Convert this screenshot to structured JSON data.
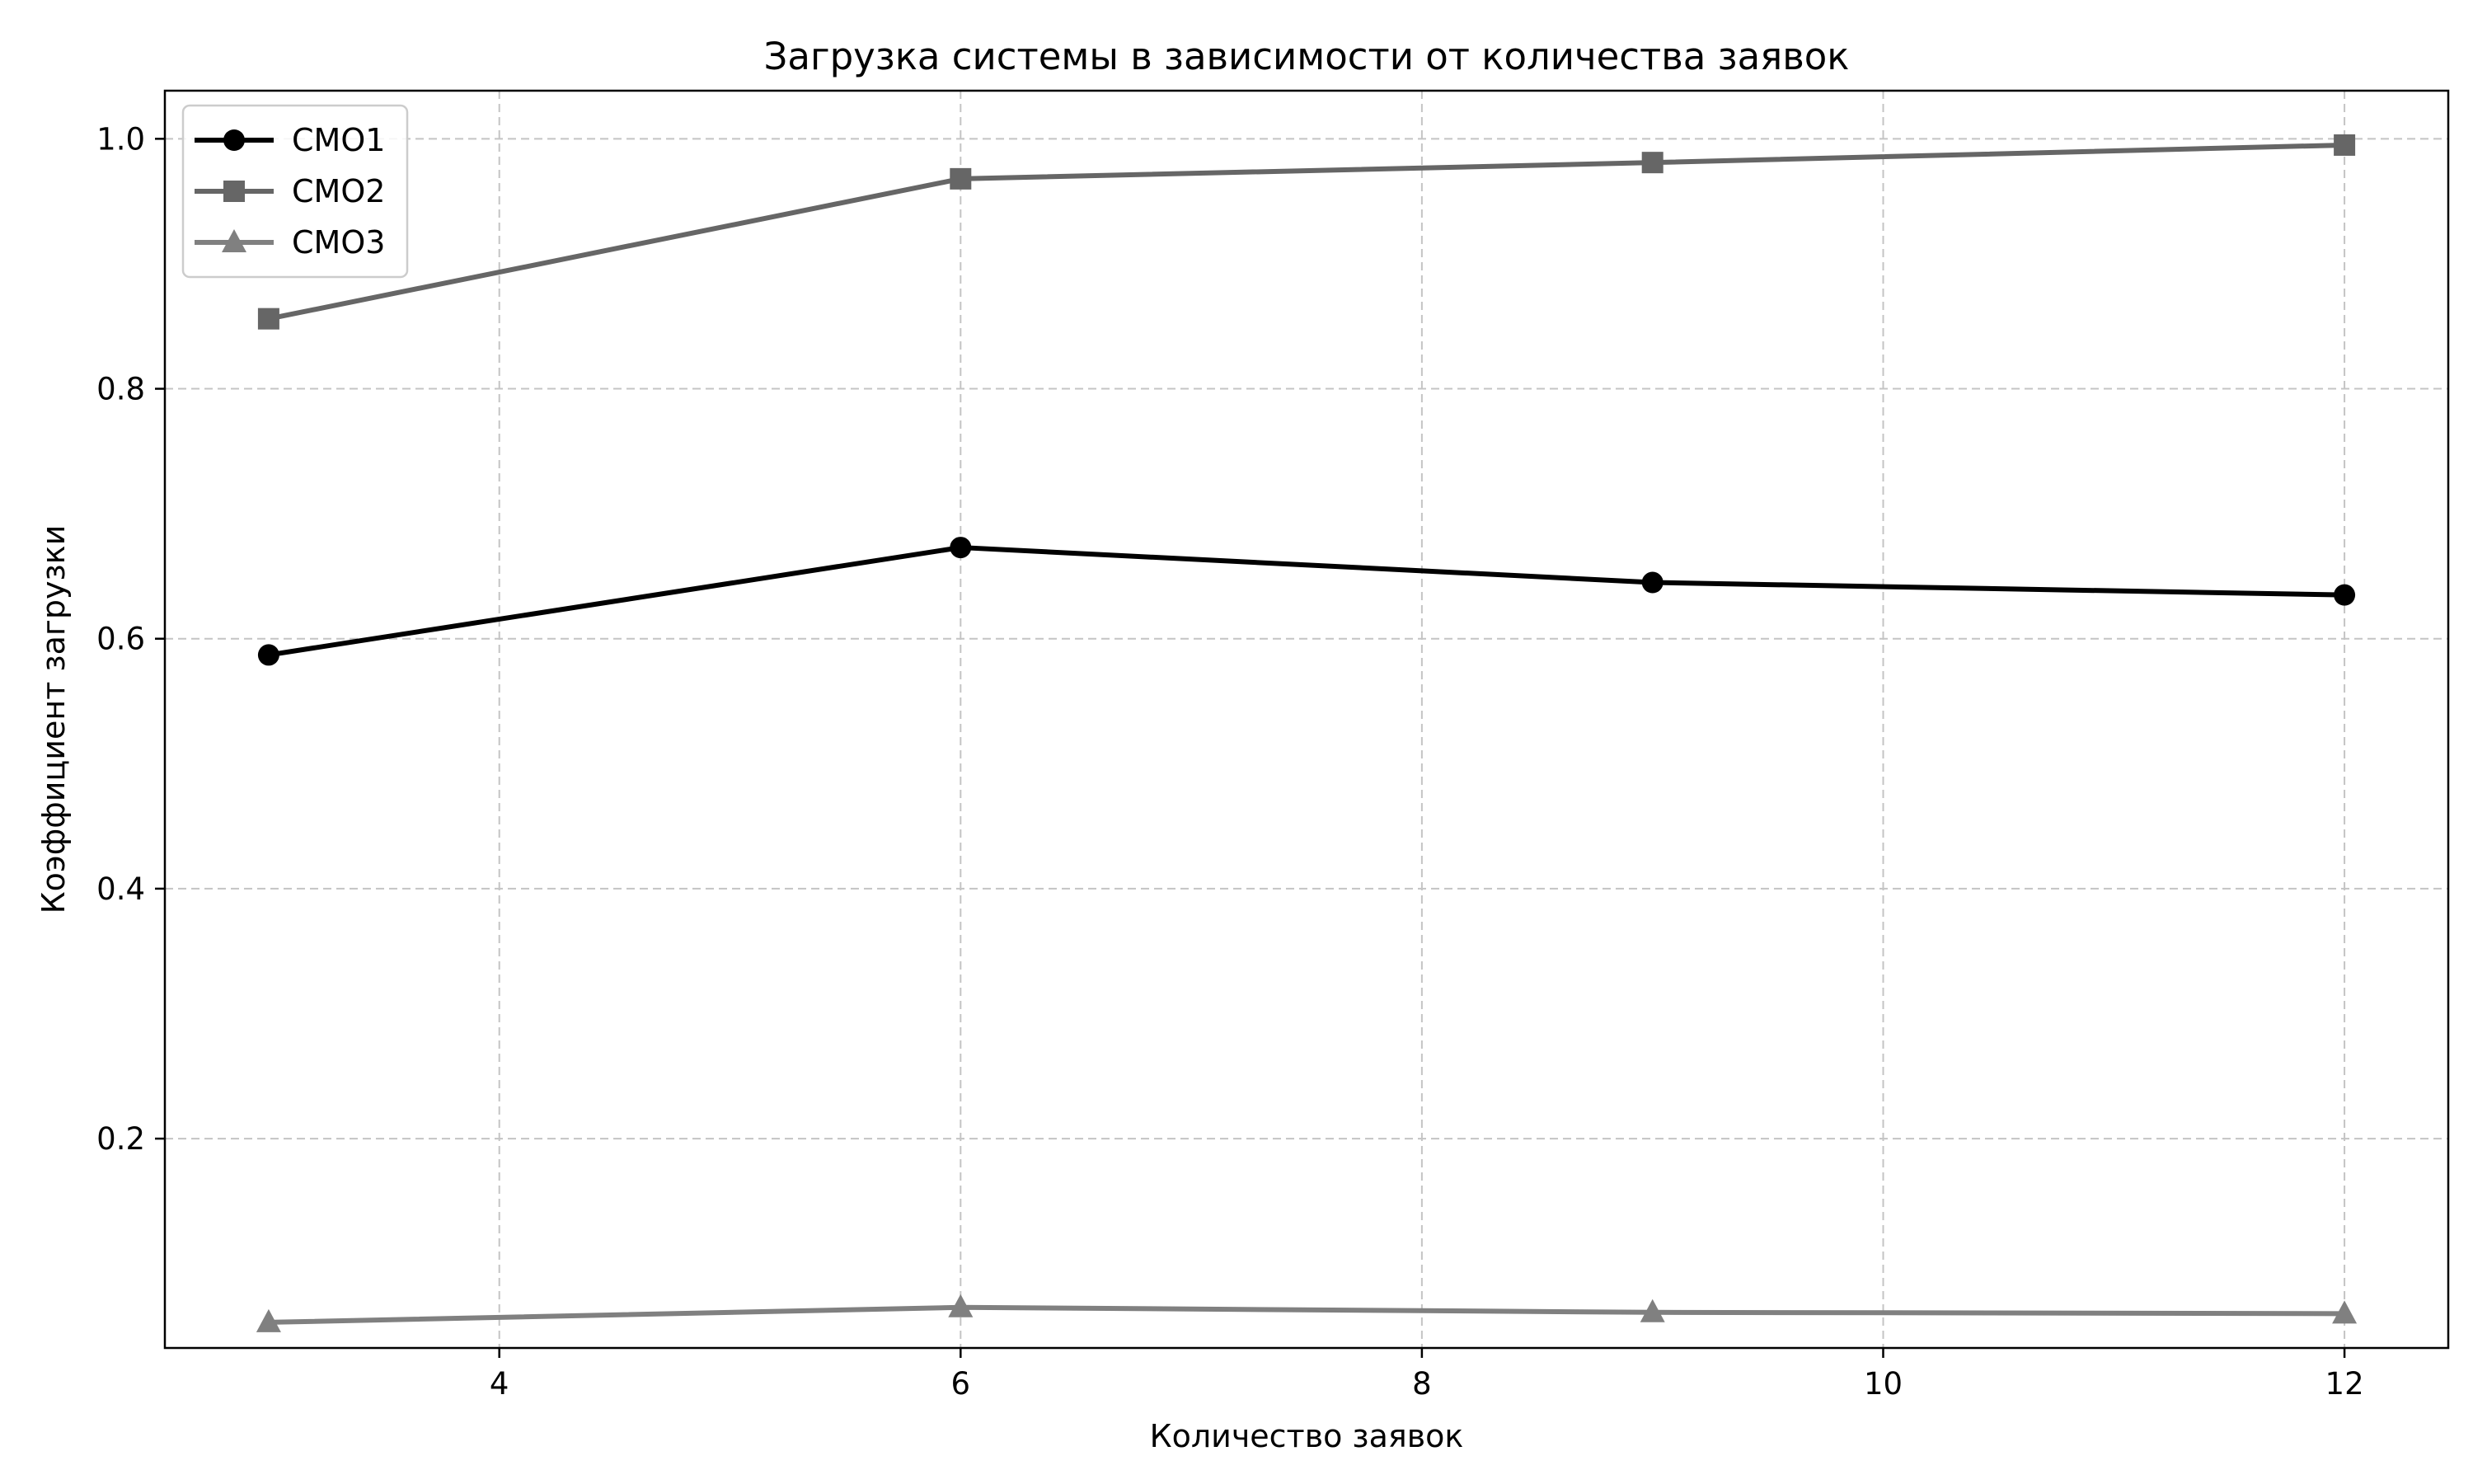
{
  "chart_data": {
    "type": "line",
    "title": "Загрузка системы в зависимости от количества заявок",
    "xlabel": "Количество заявок",
    "ylabel": "Коэффициент загрузки",
    "xlim": [
      2.55,
      12.45
    ],
    "ylim": [
      0.0325,
      1.0385
    ],
    "xticks": [
      4,
      6,
      8,
      10,
      12
    ],
    "yticks": [
      0.2,
      0.4,
      0.6,
      0.8,
      1.0
    ],
    "xtick_labels": [
      "4",
      "6",
      "8",
      "10",
      "12"
    ],
    "ytick_labels": [
      "0.2",
      "0.4",
      "0.6",
      "0.8",
      "1.0"
    ],
    "grid": true,
    "legend_position": "top-left",
    "x": [
      3,
      6,
      9,
      12
    ],
    "series": [
      {
        "name": "СМО1",
        "values": [
          0.587,
          0.673,
          0.645,
          0.635
        ],
        "color": "#000000",
        "marker": "circle"
      },
      {
        "name": "СМО2",
        "values": [
          0.856,
          0.968,
          0.981,
          0.995
        ],
        "color": "#666666",
        "marker": "square"
      },
      {
        "name": "СМО3",
        "values": [
          0.053,
          0.065,
          0.061,
          0.06
        ],
        "color": "#808080",
        "marker": "triangle"
      }
    ]
  }
}
